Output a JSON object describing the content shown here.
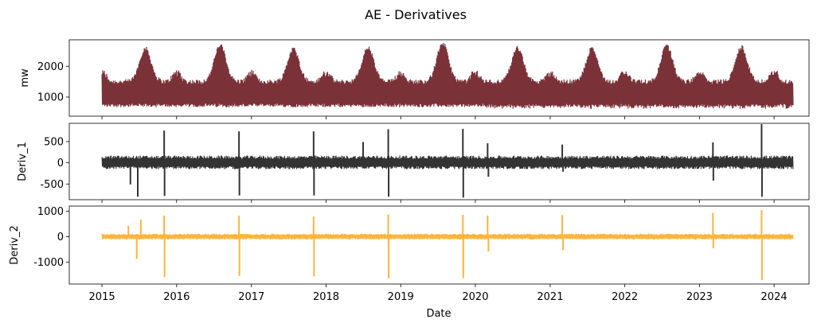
{
  "chart_data": {
    "type": "line",
    "title": "AE - Derivatives",
    "xlabel": "Date",
    "x_ticks": [
      "2015",
      "2016",
      "2017",
      "2018",
      "2019",
      "2020",
      "2021",
      "2022",
      "2023",
      "2024"
    ],
    "x_range": [
      "2015-01-01",
      "2024-04-01"
    ],
    "grid": false,
    "panels": [
      {
        "ylabel": "mw",
        "color": "#7a3238",
        "ylim": [
          380,
          2860
        ],
        "yticks": [
          1000,
          2000
        ],
        "baseline": 1000,
        "seasonal_peaks": [
          {
            "date": "2015-08-01",
            "value": 2580
          },
          {
            "date": "2016-08-01",
            "value": 2680
          },
          {
            "date": "2017-07-25",
            "value": 2560
          },
          {
            "date": "2018-07-25",
            "value": 2600
          },
          {
            "date": "2019-07-25",
            "value": 2750
          },
          {
            "date": "2020-07-25",
            "value": 2600
          },
          {
            "date": "2021-07-25",
            "value": 2580
          },
          {
            "date": "2022-07-25",
            "value": 2660
          },
          {
            "date": "2023-07-25",
            "value": 2620
          }
        ],
        "typical_range": [
          700,
          1500
        ]
      },
      {
        "ylabel": "Deriv_1",
        "color": "#333333",
        "ylim": [
          -870,
          930
        ],
        "yticks": [
          -500,
          0,
          500
        ],
        "noise_band": [
          -150,
          170
        ],
        "spikes": [
          {
            "date": "2015-05-20",
            "value": -510
          },
          {
            "date": "2015-06-25",
            "value": -800
          },
          {
            "date": "2015-11-01",
            "value": 760
          },
          {
            "date": "2015-11-03",
            "value": -780
          },
          {
            "date": "2016-11-01",
            "value": 740
          },
          {
            "date": "2016-11-03",
            "value": -770
          },
          {
            "date": "2017-11-01",
            "value": 740
          },
          {
            "date": "2017-11-03",
            "value": -770
          },
          {
            "date": "2018-07-01",
            "value": 490
          },
          {
            "date": "2018-11-01",
            "value": 790
          },
          {
            "date": "2018-11-03",
            "value": -800
          },
          {
            "date": "2019-11-01",
            "value": 800
          },
          {
            "date": "2019-11-03",
            "value": -820
          },
          {
            "date": "2020-03-01",
            "value": 460
          },
          {
            "date": "2020-03-05",
            "value": -330
          },
          {
            "date": "2021-03-01",
            "value": 430
          },
          {
            "date": "2021-03-05",
            "value": -210
          },
          {
            "date": "2023-03-08",
            "value": 480
          },
          {
            "date": "2023-03-10",
            "value": -420
          },
          {
            "date": "2023-11-01",
            "value": 910
          },
          {
            "date": "2023-11-03",
            "value": -800
          }
        ]
      },
      {
        "ylabel": "Deriv_2",
        "color": "#ffb43c",
        "ylim": [
          -1850,
          1200
        ],
        "yticks": [
          -1000,
          0,
          1000
        ],
        "noise_band": [
          -150,
          170
        ],
        "spikes": [
          {
            "date": "2015-05-10",
            "value": 430
          },
          {
            "date": "2015-06-20",
            "value": -870
          },
          {
            "date": "2015-07-10",
            "value": 670
          },
          {
            "date": "2015-11-01",
            "value": 830
          },
          {
            "date": "2015-11-03",
            "value": -1580
          },
          {
            "date": "2016-11-01",
            "value": 820
          },
          {
            "date": "2016-11-03",
            "value": -1540
          },
          {
            "date": "2017-11-01",
            "value": 790
          },
          {
            "date": "2017-11-03",
            "value": -1550
          },
          {
            "date": "2018-11-01",
            "value": 870
          },
          {
            "date": "2018-11-03",
            "value": -1630
          },
          {
            "date": "2019-11-01",
            "value": 860
          },
          {
            "date": "2019-11-03",
            "value": -1620
          },
          {
            "date": "2020-03-01",
            "value": 830
          },
          {
            "date": "2020-03-05",
            "value": -580
          },
          {
            "date": "2021-03-01",
            "value": 850
          },
          {
            "date": "2021-03-05",
            "value": -530
          },
          {
            "date": "2023-03-08",
            "value": 930
          },
          {
            "date": "2023-03-10",
            "value": -450
          },
          {
            "date": "2023-11-01",
            "value": 1040
          },
          {
            "date": "2023-11-03",
            "value": -1700
          }
        ]
      }
    ]
  }
}
